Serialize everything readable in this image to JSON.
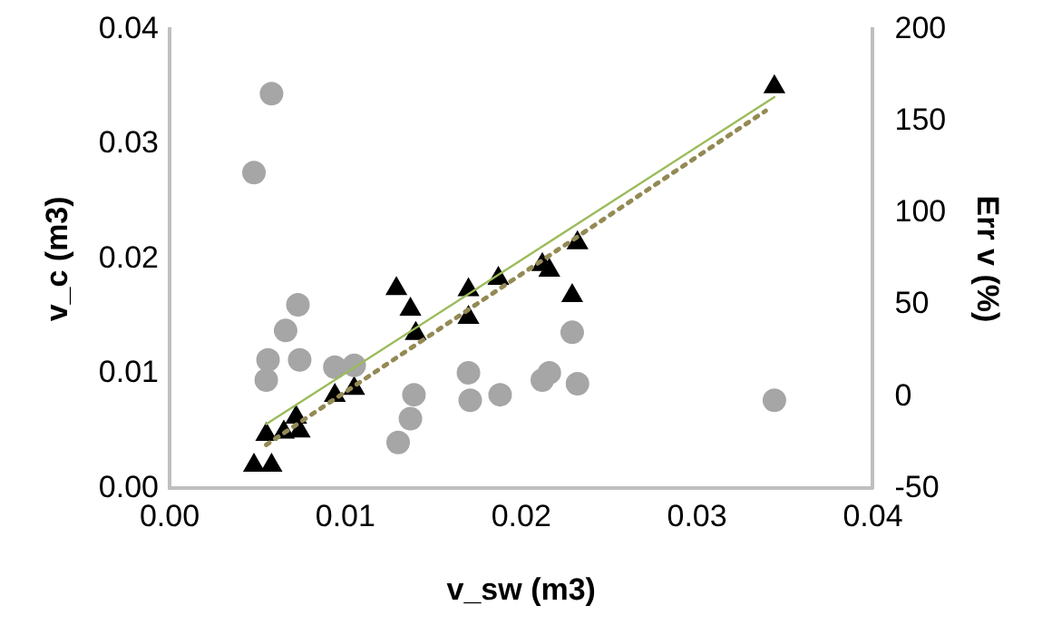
{
  "chart_data": {
    "type": "scatter",
    "xlabel": "v_sw (m3)",
    "ylabel": "v_c (m3)",
    "y2label": "Err v (%)",
    "xlim": [
      0,
      0.04
    ],
    "xticks": [
      {
        "value": 0,
        "label": "0.00"
      },
      {
        "value": 0.01,
        "label": "0.01"
      },
      {
        "value": 0.02,
        "label": "0.02"
      },
      {
        "value": 0.03,
        "label": "0.03"
      },
      {
        "value": 0.04,
        "label": "0.04"
      }
    ],
    "ylim": [
      0,
      0.04
    ],
    "yticks": [
      {
        "value": 0,
        "label": "0.00"
      },
      {
        "value": 0.01,
        "label": "0.01"
      },
      {
        "value": 0.02,
        "label": "0.02"
      },
      {
        "value": 0.03,
        "label": "0.03"
      },
      {
        "value": 0.04,
        "label": "0.04"
      }
    ],
    "y2lim": [
      -50,
      200
    ],
    "y2ticks": [
      -50,
      0,
      50,
      100,
      150,
      200
    ],
    "grid": false,
    "legend": false,
    "series": [
      {
        "marker": "circle",
        "axis": "y2",
        "color": "#a6a6a6",
        "x": [
          0.0058,
          0.0048,
          0.0073,
          0.0066,
          0.0056,
          0.0055,
          0.0074,
          0.0094,
          0.0105,
          0.0139,
          0.0137,
          0.013,
          0.017,
          0.0171,
          0.0188,
          0.0212,
          0.0216,
          0.0229,
          0.0232,
          0.0344
        ],
        "values": [
          165,
          122,
          50,
          36,
          20,
          9,
          20,
          16,
          17,
          1,
          -12,
          -25,
          13,
          -2,
          1,
          9,
          13,
          35,
          7,
          -2
        ]
      },
      {
        "marker": "triangle",
        "color": "#000000",
        "x": [
          0.0048,
          0.0058,
          0.0055,
          0.0065,
          0.0074,
          0.0072,
          0.0094,
          0.0105,
          0.0129,
          0.0137,
          0.014,
          0.017,
          0.017,
          0.0187,
          0.0212,
          0.0216,
          0.0229,
          0.0232,
          0.0344
        ],
        "values": [
          0.002,
          0.002,
          0.0047,
          0.0049,
          0.005,
          0.0062,
          0.0081,
          0.0087,
          0.0174,
          0.0156,
          0.0135,
          0.0173,
          0.0149,
          0.0183,
          0.0195,
          0.019,
          0.0168,
          0.0214,
          0.035
        ]
      },
      {
        "type": "line",
        "line_style": "solid",
        "marker": "none",
        "color": "#9bbb59",
        "x": [
          0.0055,
          0.0344
        ],
        "values": [
          0.0056,
          0.0341
        ]
      },
      {
        "type": "line",
        "line_style": "dotted",
        "marker": "none",
        "color": "#948a54",
        "x": [
          0.0055,
          0.0339
        ],
        "values": [
          0.0038,
          0.0329
        ]
      }
    ]
  }
}
